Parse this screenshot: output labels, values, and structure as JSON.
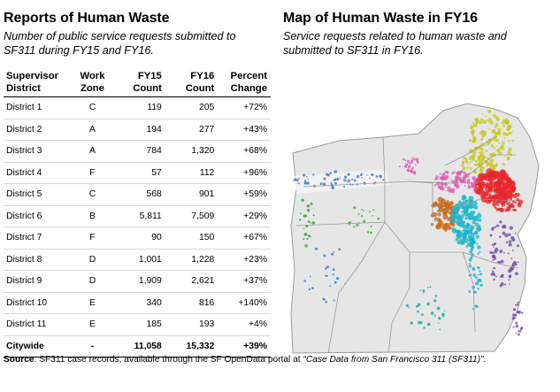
{
  "table_section": {
    "title": "Reports of Human Waste",
    "subtitle": "Number of public service requests submitted to SF311 during FY15 and FY16.",
    "headers": {
      "district": "Supervisor District",
      "zone": "Work Zone",
      "fy15": "FY15 Count",
      "fy16": "FY16 Count",
      "change": "Percent Change"
    },
    "rows": [
      {
        "district": "District 1",
        "zone": "C",
        "fy15": "119",
        "fy16": "205",
        "change": "+72%"
      },
      {
        "district": "District 2",
        "zone": "A",
        "fy15": "194",
        "fy16": "277",
        "change": "+43%"
      },
      {
        "district": "District 3",
        "zone": "A",
        "fy15": "784",
        "fy16": "1,320",
        "change": "+68%"
      },
      {
        "district": "District 4",
        "zone": "F",
        "fy15": "57",
        "fy16": "112",
        "change": "+96%"
      },
      {
        "district": "District 5",
        "zone": "C",
        "fy15": "568",
        "fy16": "901",
        "change": "+59%"
      },
      {
        "district": "District 6",
        "zone": "B",
        "fy15": "5,811",
        "fy16": "7,509",
        "change": "+29%"
      },
      {
        "district": "District 7",
        "zone": "F",
        "fy15": "90",
        "fy16": "150",
        "change": "+67%"
      },
      {
        "district": "District 8",
        "zone": "D",
        "fy15": "1,001",
        "fy16": "1,228",
        "change": "+23%"
      },
      {
        "district": "District 9",
        "zone": "D",
        "fy15": "1,909",
        "fy16": "2,621",
        "change": "+37%"
      },
      {
        "district": "District 10",
        "zone": "E",
        "fy15": "340",
        "fy16": "816",
        "change": "+140%"
      },
      {
        "district": "District 11",
        "zone": "E",
        "fy15": "185",
        "fy16": "193",
        "change": "+4%"
      }
    ],
    "total": {
      "district": "Citywide",
      "zone": "-",
      "fy15": "11,058",
      "fy16": "15,332",
      "change": "+39%"
    }
  },
  "map_section": {
    "title": "Map of Human Waste in FY16",
    "subtitle": "Service requests related to human waste and submitted to SF311 in FY16."
  },
  "source": {
    "label": "Source",
    "text_before": ": SF311 case records, available through the SF OpenData portal at ",
    "link_text": "“Case Data from San Francisco 311 (SF311)”",
    "text_after": "."
  },
  "colors": {
    "zone_a": "#c8c81e",
    "zone_b": "#e8262b",
    "zone_c": "#e05ab4",
    "zone_d": "#c66a1a",
    "zone_e": "#6a4ab0",
    "zone_f": "#3b78c4",
    "zone_mission": "#1bb5c8",
    "zone_west": "#3aa43a",
    "land": "#e6e6e6",
    "boundary": "#9a9a9a"
  }
}
